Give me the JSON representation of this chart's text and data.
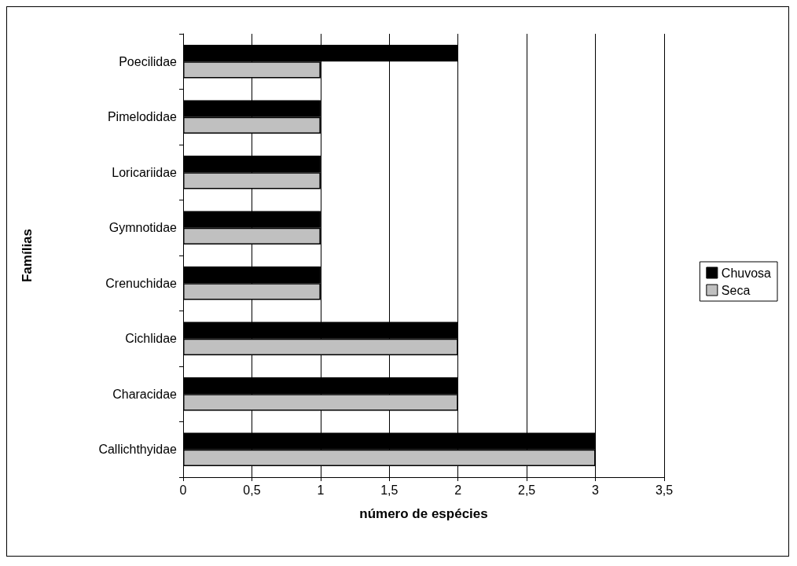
{
  "chart_data": {
    "type": "bar",
    "orientation": "horizontal",
    "xlabel": "número de espécies",
    "ylabel": "Famílias",
    "categories": [
      "Poecilidae",
      "Pimelodidae",
      "Loricariidae",
      "Gymnotidae",
      "Crenuchidae",
      "Cichlidae",
      "Characidae",
      "Callichthyidae"
    ],
    "series": [
      {
        "name": "Chuvosa",
        "color": "#000000",
        "values": [
          2,
          1,
          1,
          1,
          1,
          2,
          2,
          3
        ]
      },
      {
        "name": "Seca",
        "color": "#c0c0c0",
        "values": [
          1,
          1,
          1,
          1,
          1,
          2,
          2,
          3
        ]
      }
    ],
    "xlim": [
      0,
      3.5
    ],
    "xticks": [
      0,
      {
        "value": 0.5,
        "label": "0,5"
      },
      1,
      {
        "value": 1.5,
        "label": "1,5"
      },
      2,
      {
        "value": 2.5,
        "label": "2,5"
      },
      3,
      {
        "value": 3.5,
        "label": "3,5"
      }
    ],
    "grid": "x",
    "legend": "right"
  }
}
